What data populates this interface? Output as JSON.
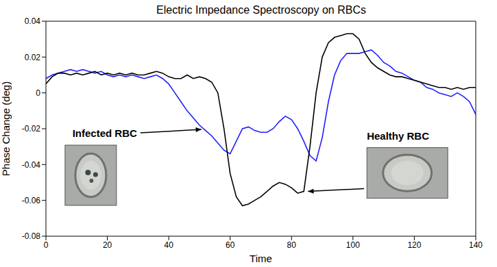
{
  "chart_data": {
    "type": "line",
    "title": "Electric Impedance Spectroscopy on RBCs",
    "x_label": "Time",
    "y_label": "Phase Change (deg)",
    "x": [
      0,
      2,
      4,
      6,
      8,
      10,
      12,
      14,
      16,
      18,
      20,
      22,
      24,
      26,
      28,
      30,
      32,
      34,
      36,
      38,
      40,
      42,
      44,
      46,
      48,
      50,
      52,
      54,
      56,
      58,
      60,
      62,
      64,
      66,
      68,
      70,
      72,
      74,
      76,
      78,
      80,
      82,
      84,
      86,
      88,
      90,
      92,
      94,
      96,
      98,
      100,
      102,
      104,
      106,
      108,
      110,
      112,
      114,
      116,
      118,
      120,
      122,
      124,
      126,
      128,
      130,
      132,
      134,
      136,
      138,
      140
    ],
    "series": [
      {
        "color": "#1f1fff",
        "values": [
          0.008,
          0.01,
          0.011,
          0.012,
          0.013,
          0.012,
          0.013,
          0.012,
          0.011,
          0.012,
          0.01,
          0.009,
          0.01,
          0.009,
          0.01,
          0.009,
          0.008,
          0.009,
          0.01,
          0.008,
          0.005,
          0.0,
          -0.005,
          -0.01,
          -0.014,
          -0.018,
          -0.021,
          -0.024,
          -0.028,
          -0.032,
          -0.034,
          -0.027,
          -0.02,
          -0.019,
          -0.021,
          -0.022,
          -0.022,
          -0.02,
          -0.016,
          -0.013,
          -0.015,
          -0.02,
          -0.027,
          -0.035,
          -0.038,
          -0.025,
          -0.005,
          0.01,
          0.018,
          0.022,
          0.022,
          0.022,
          0.023,
          0.024,
          0.021,
          0.017,
          0.015,
          0.012,
          0.011,
          0.009,
          0.007,
          0.006,
          0.003,
          0.002,
          0.0,
          -0.001,
          -0.002,
          0.0,
          -0.002,
          -0.005,
          -0.012
        ]
      },
      {
        "color": "#000000",
        "values": [
          0.005,
          0.009,
          0.011,
          0.011,
          0.01,
          0.011,
          0.01,
          0.011,
          0.012,
          0.01,
          0.011,
          0.01,
          0.011,
          0.01,
          0.011,
          0.01,
          0.01,
          0.011,
          0.012,
          0.011,
          0.009,
          0.008,
          0.008,
          0.01,
          0.008,
          0.009,
          0.008,
          0.006,
          0.0,
          -0.02,
          -0.045,
          -0.058,
          -0.063,
          -0.062,
          -0.06,
          -0.058,
          -0.055,
          -0.052,
          -0.05,
          -0.051,
          -0.053,
          -0.056,
          -0.055,
          -0.03,
          0.0,
          0.02,
          0.028,
          0.031,
          0.032,
          0.033,
          0.033,
          0.03,
          0.022,
          0.017,
          0.014,
          0.012,
          0.01,
          0.009,
          0.009,
          0.008,
          0.007,
          0.006,
          0.005,
          0.004,
          0.003,
          0.003,
          0.002,
          0.003,
          0.002,
          0.003,
          0.003
        ]
      }
    ],
    "xlim": [
      0,
      140
    ],
    "xticks": [
      0,
      20,
      40,
      60,
      80,
      100,
      120,
      140
    ],
    "ylim": [
      -0.08,
      0.04
    ],
    "yticks": [
      -0.08,
      -0.06,
      -0.04,
      -0.02,
      0,
      0.02,
      0.04
    ],
    "grid": false,
    "annotations": [
      {
        "text": "Infected RBC",
        "x": 52,
        "y": -0.02
      },
      {
        "text": "Healthy RBC",
        "x": 84,
        "y": -0.055
      }
    ]
  }
}
